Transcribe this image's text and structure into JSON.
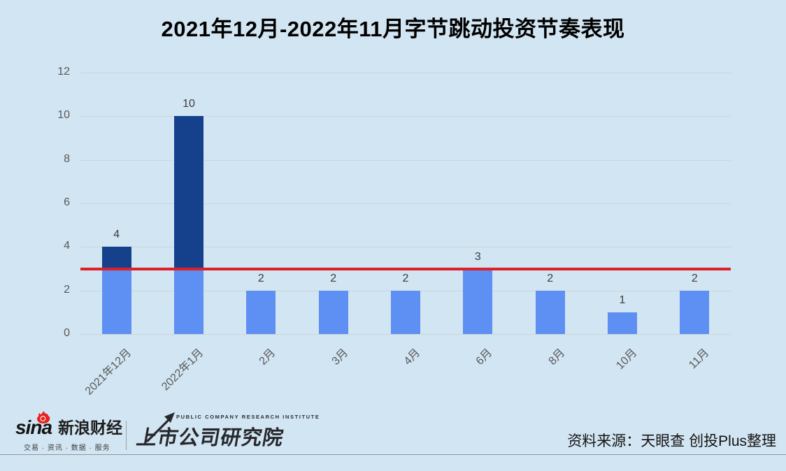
{
  "title": "2021年12月-2022年11月字节跳动投资节奏表现",
  "colors": {
    "background": "#d2e5f2",
    "bar_below_threshold": "#5e8ff2",
    "bar_above_threshold": "#15418c",
    "threshold_line": "#de2128",
    "gridline": "#ccd5d9",
    "axis_text": "#595959",
    "value_label_text": "#3d3d3d",
    "sina_red": "#e6221f",
    "logo_dark": "#26282c"
  },
  "chart_data": {
    "type": "bar",
    "title": "2021年12月-2022年11月字节跳动投资节奏表现",
    "categories": [
      "2021年12月",
      "2022年1月",
      "2月",
      "3月",
      "4月",
      "6月",
      "8月",
      "10月",
      "11月"
    ],
    "values": [
      4,
      10,
      2,
      2,
      2,
      3,
      2,
      1,
      2
    ],
    "xlabel": "",
    "ylabel": "",
    "ylim": [
      0,
      12
    ],
    "yticks": [
      0,
      2,
      4,
      6,
      8,
      10,
      12
    ],
    "grid": true,
    "legend": false,
    "threshold_line_value": 3,
    "color_rule": "bar segments below 3 are light blue, segments above 3 are dark navy"
  },
  "footer": {
    "sina": {
      "wordmark": "sina",
      "name": "新浪财经",
      "tagline": "交易 · 资讯 · 数据 · 服务"
    },
    "institute": {
      "super_text": "PUBLIC COMPANY RESEARCH INSTITUTE",
      "name": "上市公司研究院"
    },
    "source": "资料来源：天眼查 创投Plus整理"
  }
}
